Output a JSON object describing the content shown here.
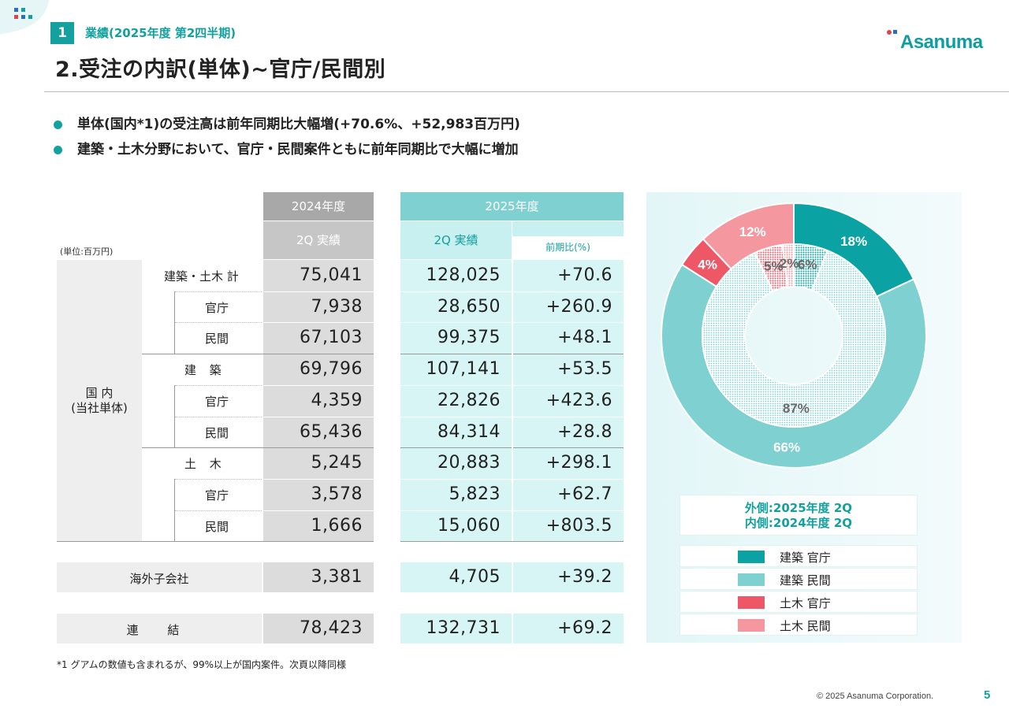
{
  "header": {
    "section_number": "1",
    "section_title": "業績(2025年度 第2四半期)",
    "page_title": "2.受注の内訳(単体)~官庁/民間別",
    "logo_text": "Asanuma"
  },
  "bullets": [
    "単体(国内*1)の受注高は前年同期比大幅増(+70.6%、+52,983百万円)",
    "建築・土木分野において、官庁・民間案件ともに前年同期比で大幅に増加"
  ],
  "table": {
    "unit": "(単位:百万円)",
    "header_2024": "2024年度",
    "header_2024_sub": "2Q 実績",
    "header_2025": "2025年度",
    "header_2025_sub": "2Q 実績",
    "header_yoy": "前期比(%)",
    "domestic_label_1": "国 内",
    "domestic_label_2": "(当社単体)",
    "rows": [
      {
        "label": "建築・土木 計",
        "v2024": "75,041",
        "v2025": "128,025",
        "yoy": "+70.6"
      },
      {
        "label": "官庁",
        "v2024": "7,938",
        "v2025": "28,650",
        "yoy": "+260.9"
      },
      {
        "label": "民間",
        "v2024": "67,103",
        "v2025": "99,375",
        "yoy": "+48.1"
      },
      {
        "label": "建 築",
        "v2024": "69,796",
        "v2025": "107,141",
        "yoy": "+53.5"
      },
      {
        "label": "官庁",
        "v2024": "4,359",
        "v2025": "22,826",
        "yoy": "+423.6"
      },
      {
        "label": "民間",
        "v2024": "65,436",
        "v2025": "84,314",
        "yoy": "+28.8"
      },
      {
        "label": "土 木",
        "v2024": "5,245",
        "v2025": "20,883",
        "yoy": "+298.1"
      },
      {
        "label": "官庁",
        "v2024": "3,578",
        "v2025": "5,823",
        "yoy": "+62.7"
      },
      {
        "label": "民間",
        "v2024": "1,666",
        "v2025": "15,060",
        "yoy": "+803.5"
      }
    ],
    "overseas": {
      "label": "海外子会社",
      "v2024": "3,381",
      "v2025": "4,705",
      "yoy": "+39.2"
    },
    "consolidated": {
      "label": "連 結",
      "v2024": "78,423",
      "v2025": "132,731",
      "yoy": "+69.2"
    }
  },
  "footnote": "*1 グアムの数値も含まれるが、99%以上が国内案件。次頁以降同様",
  "chart_data": {
    "type": "pie",
    "subtype": "nested-donut",
    "categories": [
      "建築 官庁",
      "建築 民間",
      "土木 官庁",
      "土木 民間"
    ],
    "series": [
      {
        "name": "外側:2025年度 2Q",
        "values": [
          18,
          66,
          4,
          12
        ]
      },
      {
        "name": "内側:2024年度 2Q",
        "values": [
          6,
          87,
          5,
          2
        ]
      }
    ],
    "labels_outer": [
      "18%",
      "66%",
      "4%",
      "12%"
    ],
    "labels_inner": [
      "6%",
      "87%",
      "5%",
      "2%"
    ],
    "colors": [
      "#0aa2a2",
      "#7fd1d1",
      "#ee5866",
      "#f5979f"
    ],
    "legend_placement": "bottom"
  },
  "legend": {
    "caption_line1": "外側:2025年度 2Q",
    "caption_line2": "内側:2024年度 2Q",
    "items": [
      "建築 官庁",
      "建築 民間",
      "土木 官庁",
      "土木 民間"
    ]
  },
  "footer": {
    "copyright": "© 2025 Asanuma Corporation.",
    "page_number": "5"
  }
}
